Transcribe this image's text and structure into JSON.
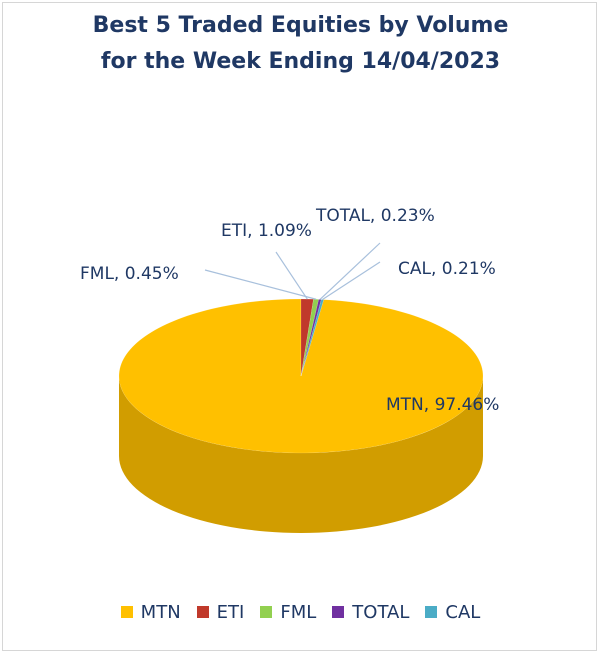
{
  "chart_data": {
    "type": "pie",
    "title_lines": [
      "Best 5 Traded Equities by Volume",
      "for the Week Ending 14/04/2023"
    ],
    "categories": [
      "MTN",
      "ETI",
      "FML",
      "TOTAL",
      "CAL"
    ],
    "values": [
      97.46,
      1.09,
      0.45,
      0.23,
      0.21
    ],
    "data_labels": [
      "MTN, 97.46%",
      "ETI, 1.09%",
      "FML, 0.45%",
      "TOTAL, 0.23%",
      "CAL, 0.21%"
    ],
    "colors": [
      "#ffc000",
      "#c0392b",
      "#92d050",
      "#7030a0",
      "#4bacc6"
    ],
    "style": "3d-pie",
    "legend_position": "bottom"
  }
}
